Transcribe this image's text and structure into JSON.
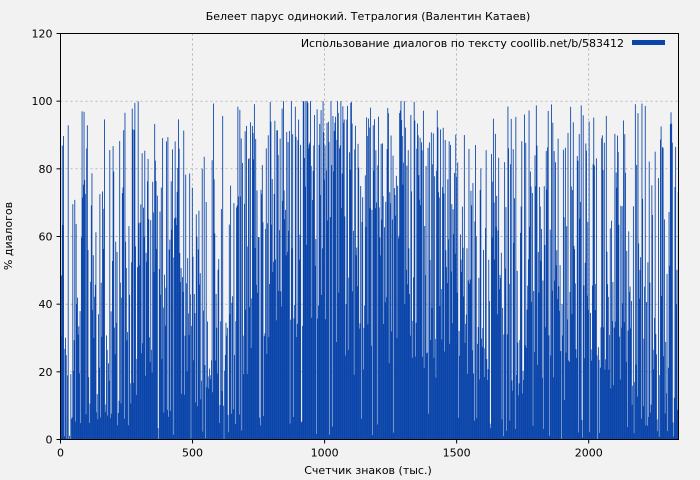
{
  "chart_data": {
    "type": "bar",
    "title": "Белеет парус одинокий. Тетралогия (Валентин Катаев)",
    "xlabel": "Счетчик знаков (тыс.)",
    "ylabel": "% диалогов",
    "xlim": [
      0,
      2340
    ],
    "ylim": [
      0,
      120
    ],
    "x_ticks": [
      0,
      500,
      1000,
      1500,
      2000
    ],
    "y_ticks": [
      0,
      20,
      40,
      60,
      80,
      100,
      120
    ],
    "grid": true,
    "legend_position": "top-right",
    "bar_step": 2.5,
    "series": [
      {
        "name": "Использование диалогов по тексту coollib.net/b/583412",
        "color": "#0a45aa",
        "envelope": [
          {
            "x": 0,
            "value": 30
          },
          {
            "x": 50,
            "value": 32
          },
          {
            "x": 100,
            "value": 45
          },
          {
            "x": 150,
            "value": 38
          },
          {
            "x": 200,
            "value": 40
          },
          {
            "x": 250,
            "value": 35
          },
          {
            "x": 300,
            "value": 50
          },
          {
            "x": 350,
            "value": 48
          },
          {
            "x": 400,
            "value": 42
          },
          {
            "x": 450,
            "value": 55
          },
          {
            "x": 500,
            "value": 45
          },
          {
            "x": 550,
            "value": 50
          },
          {
            "x": 600,
            "value": 38
          },
          {
            "x": 650,
            "value": 40
          },
          {
            "x": 700,
            "value": 55
          },
          {
            "x": 750,
            "value": 62
          },
          {
            "x": 800,
            "value": 60
          },
          {
            "x": 850,
            "value": 65
          },
          {
            "x": 900,
            "value": 70
          },
          {
            "x": 950,
            "value": 75
          },
          {
            "x": 1000,
            "value": 72
          },
          {
            "x": 1050,
            "value": 65
          },
          {
            "x": 1100,
            "value": 60
          },
          {
            "x": 1150,
            "value": 55
          },
          {
            "x": 1200,
            "value": 58
          },
          {
            "x": 1250,
            "value": 62
          },
          {
            "x": 1300,
            "value": 68
          },
          {
            "x": 1350,
            "value": 60
          },
          {
            "x": 1400,
            "value": 55
          },
          {
            "x": 1450,
            "value": 58
          },
          {
            "x": 1500,
            "value": 50
          },
          {
            "x": 1550,
            "value": 55
          },
          {
            "x": 1600,
            "value": 52
          },
          {
            "x": 1650,
            "value": 60
          },
          {
            "x": 1700,
            "value": 55
          },
          {
            "x": 1750,
            "value": 50
          },
          {
            "x": 1800,
            "value": 52
          },
          {
            "x": 1850,
            "value": 55
          },
          {
            "x": 1900,
            "value": 50
          },
          {
            "x": 1950,
            "value": 58
          },
          {
            "x": 2000,
            "value": 55
          },
          {
            "x": 2050,
            "value": 50
          },
          {
            "x": 2100,
            "value": 52
          },
          {
            "x": 2150,
            "value": 45
          },
          {
            "x": 2200,
            "value": 42
          },
          {
            "x": 2250,
            "value": 48
          },
          {
            "x": 2300,
            "value": 50
          },
          {
            "x": 2340,
            "value": 45
          }
        ]
      }
    ]
  }
}
